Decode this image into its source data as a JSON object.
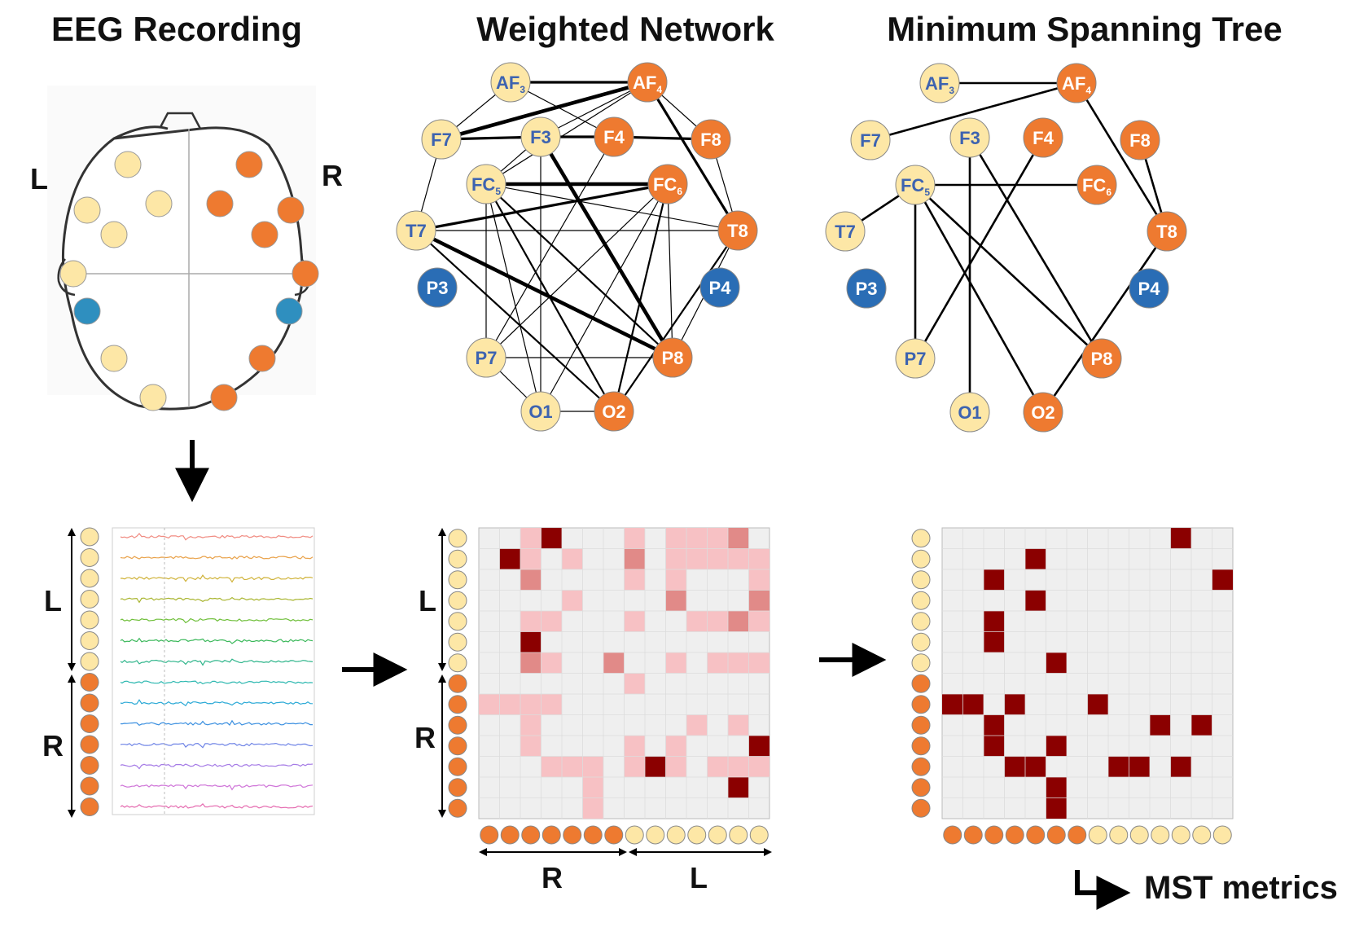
{
  "titles": {
    "eeg": "EEG Recording",
    "network": "Weighted Network",
    "mst": "Minimum Spanning Tree"
  },
  "side_labels": {
    "left": "L",
    "right": "R"
  },
  "footer": {
    "mst_metrics": "MST metrics"
  },
  "colors": {
    "left_node": "#fde7a6",
    "right_node": "#ee7a30",
    "parietal_node": "#2a6db5",
    "node_label_blue": "#3d63b0",
    "node_label_white": "#ffffff",
    "matrix_bg": "#efefef",
    "matrix_grid": "#dcdcdc",
    "weight_low": "#f7c1c4",
    "weight_mid": "#e18a88",
    "weight_high": "#8b0000"
  },
  "electrodes": [
    {
      "id": "AF3",
      "label": "AF",
      "sub": "3",
      "group": "left"
    },
    {
      "id": "AF4",
      "label": "AF",
      "sub": "4",
      "group": "right"
    },
    {
      "id": "F7",
      "label": "F7",
      "sub": "",
      "group": "left"
    },
    {
      "id": "F3",
      "label": "F3",
      "sub": "",
      "group": "left"
    },
    {
      "id": "F4",
      "label": "F4",
      "sub": "",
      "group": "right"
    },
    {
      "id": "F8",
      "label": "F8",
      "sub": "",
      "group": "right"
    },
    {
      "id": "FC5",
      "label": "FC",
      "sub": "5",
      "group": "left"
    },
    {
      "id": "FC6",
      "label": "FC",
      "sub": "6",
      "group": "right"
    },
    {
      "id": "T7",
      "label": "T7",
      "sub": "",
      "group": "left"
    },
    {
      "id": "T8",
      "label": "T8",
      "sub": "",
      "group": "right"
    },
    {
      "id": "P3",
      "label": "P3",
      "sub": "",
      "group": "parietal"
    },
    {
      "id": "P4",
      "label": "P4",
      "sub": "",
      "group": "parietal"
    },
    {
      "id": "P7",
      "label": "P7",
      "sub": "",
      "group": "left"
    },
    {
      "id": "P8",
      "label": "P8",
      "sub": "",
      "group": "right"
    },
    {
      "id": "O1",
      "label": "O1",
      "sub": "",
      "group": "left"
    },
    {
      "id": "O2",
      "label": "O2",
      "sub": "",
      "group": "right"
    }
  ],
  "weighted_network_edges": [
    [
      "AF3",
      "AF4",
      3
    ],
    [
      "AF3",
      "F7",
      1
    ],
    [
      "AF3",
      "F4",
      1
    ],
    [
      "F7",
      "AF4",
      4
    ],
    [
      "F7",
      "F4",
      1
    ],
    [
      "F7",
      "F3",
      3
    ],
    [
      "AF4",
      "F3",
      1
    ],
    [
      "AF4",
      "F8",
      1
    ],
    [
      "AF4",
      "FC5",
      1
    ],
    [
      "AF4",
      "T8",
      3
    ],
    [
      "F3",
      "F4",
      3
    ],
    [
      "F4",
      "F8",
      3
    ],
    [
      "F8",
      "T8",
      1
    ],
    [
      "F7",
      "T7",
      1
    ],
    [
      "F3",
      "FC5",
      1
    ],
    [
      "F3",
      "P8",
      4
    ],
    [
      "FC5",
      "FC6",
      4
    ],
    [
      "T7",
      "FC6",
      3
    ],
    [
      "FC5",
      "T8",
      1
    ],
    [
      "T7",
      "T8",
      1
    ],
    [
      "T7",
      "P8",
      4
    ],
    [
      "T7",
      "O2",
      2
    ],
    [
      "FC5",
      "P7",
      1
    ],
    [
      "FC5",
      "O1",
      1
    ],
    [
      "FC5",
      "O2",
      2
    ],
    [
      "FC5",
      "P8",
      2
    ],
    [
      "FC6",
      "P7",
      1
    ],
    [
      "FC6",
      "O1",
      1
    ],
    [
      "FC6",
      "O2",
      2
    ],
    [
      "F3",
      "O1",
      1
    ],
    [
      "F4",
      "P7",
      1
    ],
    [
      "T8",
      "P8",
      1
    ],
    [
      "T8",
      "O2",
      2
    ],
    [
      "P7",
      "P8",
      1
    ],
    [
      "P7",
      "O1",
      1
    ],
    [
      "O1",
      "O2",
      1
    ],
    [
      "FC6",
      "P8",
      1
    ]
  ],
  "mst_edges": [
    [
      "AF3",
      "AF4"
    ],
    [
      "AF4",
      "F7"
    ],
    [
      "AF4",
      "T8"
    ],
    [
      "F8",
      "T8"
    ],
    [
      "FC5",
      "T7"
    ],
    [
      "FC5",
      "FC6"
    ],
    [
      "FC5",
      "P7"
    ],
    [
      "FC5",
      "P8"
    ],
    [
      "FC5",
      "O2"
    ],
    [
      "F3",
      "O1"
    ],
    [
      "F3",
      "P8"
    ],
    [
      "F4",
      "P7"
    ],
    [
      "T8",
      "O2"
    ]
  ],
  "matrix_weights": [
    [
      0,
      0,
      2,
      3,
      0,
      0,
      0,
      2,
      0,
      2,
      2,
      2,
      2,
      0
    ],
    [
      0,
      3,
      2,
      0,
      2,
      0,
      0,
      2,
      0,
      2,
      1,
      1,
      1,
      2
    ],
    [
      0,
      0,
      2,
      0,
      0,
      0,
      0,
      2,
      0,
      2,
      0,
      0,
      0,
      2
    ],
    [
      0,
      0,
      0,
      0,
      2,
      0,
      0,
      0,
      0,
      2,
      0,
      0,
      0,
      2
    ],
    [
      0,
      0,
      2,
      2,
      0,
      0,
      0,
      2,
      0,
      0,
      2,
      2,
      2,
      2
    ],
    [
      0,
      0,
      3,
      0,
      0,
      0,
      0,
      0,
      0,
      0,
      0,
      0,
      0,
      0
    ],
    [
      0,
      0,
      2,
      2,
      0,
      0,
      2,
      0,
      0,
      2,
      0,
      2,
      2,
      2
    ],
    [
      0,
      0,
      0,
      0,
      0,
      0,
      0,
      2,
      0,
      0,
      0,
      0,
      0,
      0
    ],
    [
      1,
      1,
      2,
      2,
      0,
      0,
      0,
      0,
      0,
      0,
      0,
      0,
      0,
      0
    ],
    [
      0,
      0,
      1,
      0,
      0,
      0,
      0,
      0,
      0,
      0,
      1,
      0,
      1,
      0
    ],
    [
      0,
      0,
      1,
      0,
      0,
      0,
      0,
      1,
      0,
      1,
      0,
      0,
      0,
      3
    ],
    [
      0,
      0,
      0,
      1,
      1,
      1,
      0,
      2,
      3,
      1,
      0,
      1,
      1,
      1
    ],
    [
      0,
      0,
      0,
      0,
      0,
      1,
      0,
      0,
      0,
      0,
      0,
      0,
      3,
      0
    ],
    [
      0,
      0,
      0,
      0,
      0,
      1,
      0,
      0,
      0,
      0,
      0,
      0,
      0,
      0
    ]
  ],
  "mst_matrix_cells": [
    [
      0,
      11
    ],
    [
      1,
      4
    ],
    [
      2,
      2
    ],
    [
      2,
      13
    ],
    [
      3,
      4
    ],
    [
      4,
      2
    ],
    [
      5,
      2
    ],
    [
      6,
      5
    ],
    [
      8,
      0
    ],
    [
      8,
      1
    ],
    [
      8,
      3
    ],
    [
      8,
      7
    ],
    [
      9,
      2
    ],
    [
      9,
      10
    ],
    [
      9,
      12
    ],
    [
      10,
      2
    ],
    [
      10,
      5
    ],
    [
      11,
      3
    ],
    [
      11,
      4
    ],
    [
      11,
      8
    ],
    [
      11,
      9
    ],
    [
      11,
      11
    ],
    [
      12,
      5
    ],
    [
      13,
      5
    ]
  ],
  "eeg_trace_colors": [
    "#f08a80",
    "#e9a24a",
    "#d0b33a",
    "#a9b52f",
    "#6fbf3a",
    "#3ab85a",
    "#2fb58b",
    "#2db8b0",
    "#2aa9d6",
    "#3a8fe0",
    "#6f84e6",
    "#a57be6",
    "#cf74d8",
    "#e56cb0"
  ]
}
